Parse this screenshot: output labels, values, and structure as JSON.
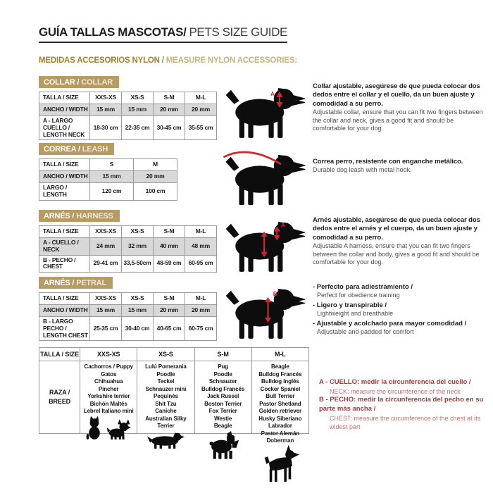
{
  "page": {
    "title_es": "GUÍA TALLAS MASCOTAS/",
    "title_en": "PETS SIZE GUIDE",
    "subtitle_es": "MEDIDAS ACCESORIOS NYLON /",
    "subtitle_en": "MEASURE NYLON ACCESSORIES:"
  },
  "colors": {
    "accent_tan": "#b79b61",
    "subtitle_gold": "#a1842e",
    "marker_red": "#cf2730",
    "note_red": "#9c3a3e",
    "row_gray": "#d8d8d8"
  },
  "silhouettes": [
    "dog-with-collar",
    "dog-with-leash",
    "dog-with-harness",
    "dog-with-petral",
    "cat",
    "chihuahua",
    "dachshund",
    "schnauzer",
    "doberman"
  ],
  "sections": {
    "collar": {
      "badge_es": "COLLAR /",
      "badge_en": "COLLAR",
      "table": {
        "header": [
          "TALLA / SIZE",
          "XXS-XS",
          "XS-S",
          "S-M",
          "M-L"
        ],
        "row1_label": "ANCHO / WIDTH",
        "row1": [
          "15 mm",
          "15 mm",
          "20 mm",
          "20 mm"
        ],
        "row2_label": "A - LARGO CUELLO / LENGTH NECK",
        "row2": [
          "18-30 cm",
          "22-35 cm",
          "30-45 cm",
          "35-55 cm"
        ]
      },
      "desc_es": "Collar ajustable, asegúrese de que pueda colocar dos dedos entre el collar y el cuello, da un buen ajuste y comodidad a su perro.",
      "desc_en": "Adjustable collar, ensure that you can fit two fingers between the collar and neck, gives a good fit and should be comfortable for your dog."
    },
    "correa": {
      "badge_es": "CORREA /",
      "badge_en": "LEASH",
      "table": {
        "header": [
          "TALLA / SIZE",
          "S",
          "M"
        ],
        "row1_label": "ANCHO / WIDTH",
        "row1": [
          "15 mm",
          "20 mm"
        ],
        "row2_label": "LARGO / LENGTH",
        "row2": [
          "120 cm",
          "100 cm"
        ]
      },
      "desc_es": "Correa perro, resistente con enganche metálico.",
      "desc_en": "Durable dog leash with metal hook."
    },
    "arnes": {
      "badge_es": "ARNÉS /",
      "badge_en": "HARNESS",
      "table": {
        "header": [
          "TALLA / SIZE",
          "XXS-XS",
          "XS-S",
          "S-M",
          "M-L"
        ],
        "row1_label": "A - CUELLO / NECK",
        "row1": [
          "24 mm",
          "32 mm",
          "40 mm",
          "48 mm"
        ],
        "row2_label": "B - PECHO / CHEST",
        "row2": [
          "29-41 cm",
          "33,5-50cm",
          "48-59 cm",
          "60-95 cm"
        ]
      },
      "desc_es": "Arnés ajustable, asegúrese de que pueda colocar dos dedos entre el arnés y el cuerpo, da un buen ajuste y comodidad a su perro.",
      "desc_en": "Adjustable A harness, ensure that you can fit two fingers between the collar and body, gives a good fit and should be comfortable for your dog."
    },
    "petral": {
      "badge_es": "ARNÉS /",
      "badge_en": "PETRAL",
      "table": {
        "header": [
          "TALLA / SIZE",
          "XXS-XS",
          "XS-S",
          "S-M",
          "M-L"
        ],
        "row1_label": "ANCHO / WIDTH",
        "row1": [
          "15 mm",
          "15 mm",
          "20 mm",
          "20 mm"
        ],
        "row2_label": "B - LARGO PECHO / LENGTH CHEST",
        "row2": [
          "25-35 cm",
          "30-40 cm",
          "40-65 cm",
          "60-75 cm"
        ]
      },
      "bullets": [
        {
          "es": "- Perfecto para adiestramiento /",
          "en": "Perfect for obedience training"
        },
        {
          "es": "- Ligero y transpirable /",
          "en": "Lightweight and breathable"
        },
        {
          "es": "- Ajustable y acolchado para mayor comodidad /",
          "en": "Adjustable and padded for comfort"
        }
      ]
    }
  },
  "breed": {
    "header": [
      "TALLA /  SIZE",
      "XXS-XS",
      "XS-S",
      "S-M",
      "M-L"
    ],
    "row_label": "RAZA / BREED",
    "columns": [
      {
        "size": "XXS-XS",
        "breeds": [
          "Cachorros / Puppy",
          "Gatos",
          "Chihuahua",
          "Pincher",
          "Yorkshire terrier",
          "Bichón Maltés",
          "Lebrel Italiano mini"
        ]
      },
      {
        "size": "XS-S",
        "breeds": [
          "Lulú Pomerania",
          "Poodle",
          "Teckel",
          "Schnauzer mini",
          "Pequinés",
          "Shit Tzu",
          "Caniche",
          "Australian Silky Terrier"
        ]
      },
      {
        "size": "S-M",
        "breeds": [
          "Pug",
          "Poodle",
          "Schnauzer",
          "Bulldog Francés",
          "Jack Russel",
          "Boston Terrier",
          "Fox Terrier",
          "Westie",
          "Beagle"
        ]
      },
      {
        "size": "M-L",
        "breeds": [
          "Beagle",
          "Bulldog Francés",
          "Bulldog Inglés",
          "Cocker Spaniel",
          "Bull Terrier",
          "Pastor Shetland",
          "Golden retriever",
          "Husky Siberiano",
          "Labrador",
          "Pastor Alemán",
          "Doberman"
        ]
      }
    ]
  },
  "notes": {
    "a_es": "A - CUELLO: medir la circunferencia del cuello /",
    "a_en": "NECK: measure the circumference of the neck",
    "b_es": "B - PECHO: medir la circunferencia del pecho en su parte más ancha /",
    "b_en": "CHEST: measure the circumference of the chest at its widest part"
  }
}
